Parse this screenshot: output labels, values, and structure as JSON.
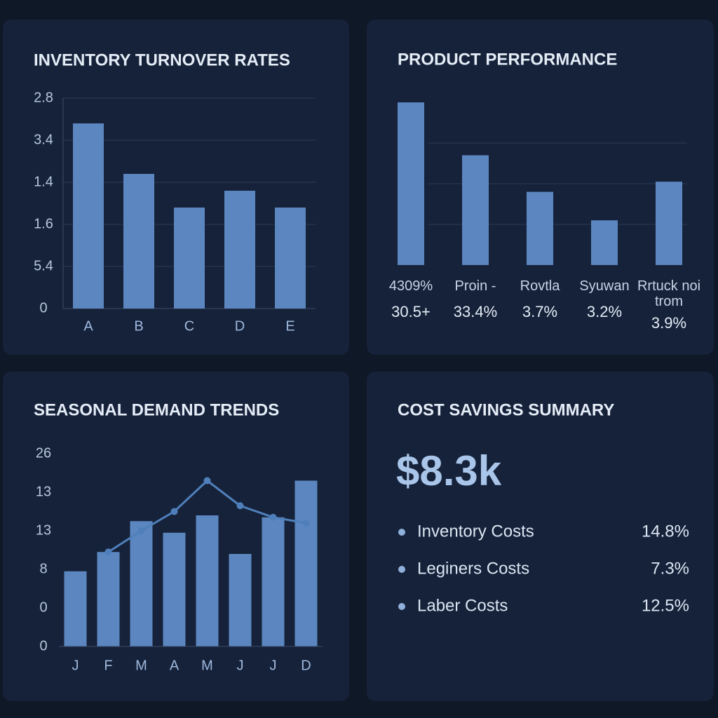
{
  "chart_data": [
    {
      "type": "bar",
      "title": "INVENTORY TURNOVER RATES",
      "categories": [
        "A",
        "B",
        "C",
        "D",
        "E"
      ],
      "values": [
        4.4,
        3.2,
        2.4,
        2.8,
        2.4
      ],
      "color": "#5b86bf",
      "ylim": [
        0,
        5
      ],
      "yticks": [
        0,
        {
          "value": 1,
          "label": "5.4"
        },
        {
          "value": 2,
          "label": "1.6"
        },
        {
          "value": 3,
          "label": "1.4"
        },
        {
          "value": 4,
          "label": "3.4"
        },
        {
          "value": 5,
          "label": "2.8"
        }
      ],
      "grid": true
    },
    {
      "type": "bar",
      "title": "PRODUCT PERFORMANCE",
      "categories": [
        "4309%",
        "Proin -",
        "Rovtla",
        "Syuwan",
        "Rrtuck noi trom"
      ],
      "annotations": [
        "30.5+",
        "33.4%",
        "3.7%",
        "3.2%",
        "3.9%"
      ],
      "values": [
        4.0,
        2.7,
        1.8,
        1.1,
        2.05
      ],
      "color": "#5b86bf",
      "ylim": [
        0,
        4
      ],
      "yticks": [
        1,
        2,
        3
      ],
      "grid": true,
      "show_tick_labels": false
    },
    {
      "type": "combo",
      "title": "SEASONAL DEMAND TRENDS",
      "categories": [
        "J",
        "F",
        "M",
        "A",
        "M",
        "J",
        "J",
        "D"
      ],
      "series": [
        {
          "type": "bar",
          "color": "#5b86bf",
          "values": [
            1.95,
            2.45,
            3.25,
            2.95,
            3.4,
            2.4,
            3.35,
            4.3
          ]
        },
        {
          "type": "line",
          "color": "#4f7fba",
          "values": [
            null,
            2.45,
            3.0,
            3.5,
            4.3,
            3.65,
            3.35,
            3.2
          ]
        }
      ],
      "ylim": [
        0,
        5
      ],
      "yticks": [
        0,
        {
          "value": 1,
          "label": "0"
        },
        {
          "value": 2,
          "label": "8"
        },
        {
          "value": 3,
          "label": "13"
        },
        {
          "value": 4,
          "label": "13"
        },
        {
          "value": 5,
          "label": "26"
        }
      ],
      "grid": false
    }
  ],
  "summary": {
    "title": "COST SAVINGS SUMMARY",
    "total": "$8.3k",
    "items": [
      {
        "label": "Inventory Costs",
        "value": "14.8%"
      },
      {
        "label": "Leginers Costs",
        "value": "7.3%"
      },
      {
        "label": "Laber Costs",
        "value": "12.5%"
      }
    ]
  }
}
